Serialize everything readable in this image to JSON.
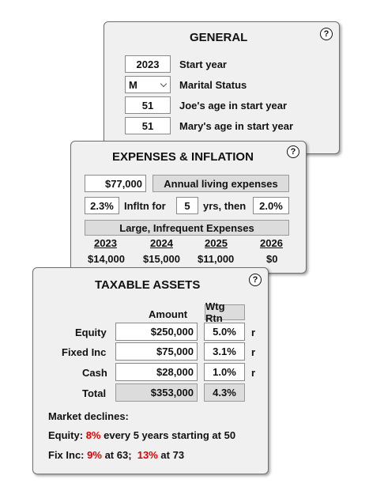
{
  "general": {
    "title": "GENERAL",
    "help": "?",
    "start_year_value": "2023",
    "start_year_label": "Start year",
    "marital_status_value": "M",
    "marital_status_label": "Marital Status",
    "joe_age_value": "51",
    "joe_age_label": "Joe's age in start year",
    "mary_age_value": "51",
    "mary_age_label": "Mary's age in start year"
  },
  "expenses": {
    "title": "EXPENSES & INFLATION",
    "help": "?",
    "living_value": "$77,000",
    "living_label": "Annual living expenses",
    "inflation_value": "2.3%",
    "inflation_for_label": "Infltn for",
    "years_value": "5",
    "yrs_then_label": "yrs, then",
    "later_inflation_value": "2.0%",
    "large_header": "Large, Infrequent Expenses",
    "years": [
      "2023",
      "2024",
      "2025",
      "2026"
    ],
    "amounts": [
      "$14,000",
      "$15,000",
      "$11,000",
      "$0"
    ]
  },
  "assets": {
    "title": "TAXABLE ASSETS",
    "help": "?",
    "amount_header": "Amount",
    "wtg_header": "Wtg Rtn",
    "rows": [
      {
        "label": "Equity",
        "amount": "$250,000",
        "rtn": "5.0%",
        "flag": "r"
      },
      {
        "label": "Fixed Inc",
        "amount": "$75,000",
        "rtn": "3.1%",
        "flag": "r"
      },
      {
        "label": "Cash",
        "amount": "$28,000",
        "rtn": "1.0%",
        "flag": "r"
      }
    ],
    "total_label": "Total",
    "total_amount": "$353,000",
    "total_rtn": "4.3%",
    "market_declines_label": "Market declines:",
    "equity_prefix": "Equity:",
    "equity_pct": "8%",
    "equity_suffix": "every 5 years starting at 50",
    "fix_prefix": "Fix Inc:",
    "fix_pct1": "9%",
    "fix_mid": "at 63;",
    "fix_pct2": "13%",
    "fix_suffix": "at 73"
  },
  "colors": {
    "panel_bg": "#f0f0f0",
    "highlight_red": "#e00000"
  }
}
